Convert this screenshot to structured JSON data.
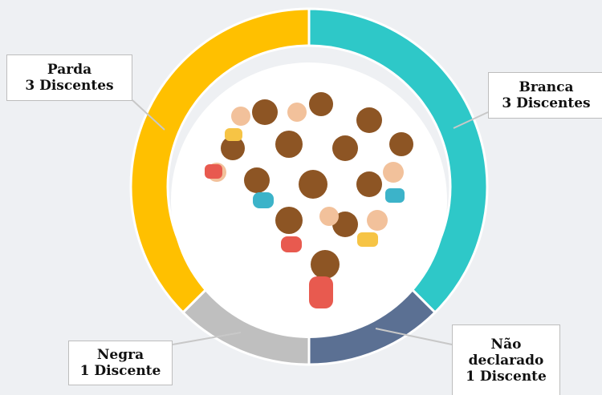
{
  "chart_data": {
    "type": "donut",
    "categories": [
      "Branca",
      "Não declarado",
      "Negra",
      "Parda"
    ],
    "values": [
      3,
      1,
      1,
      3
    ],
    "value_labels": [
      "3 Discentes",
      "1 Discente",
      "1 Discente",
      "3 Discentes"
    ],
    "colors": [
      "#2ec8c8",
      "#5b7093",
      "#bfbfbf",
      "#ffc000"
    ]
  }
}
